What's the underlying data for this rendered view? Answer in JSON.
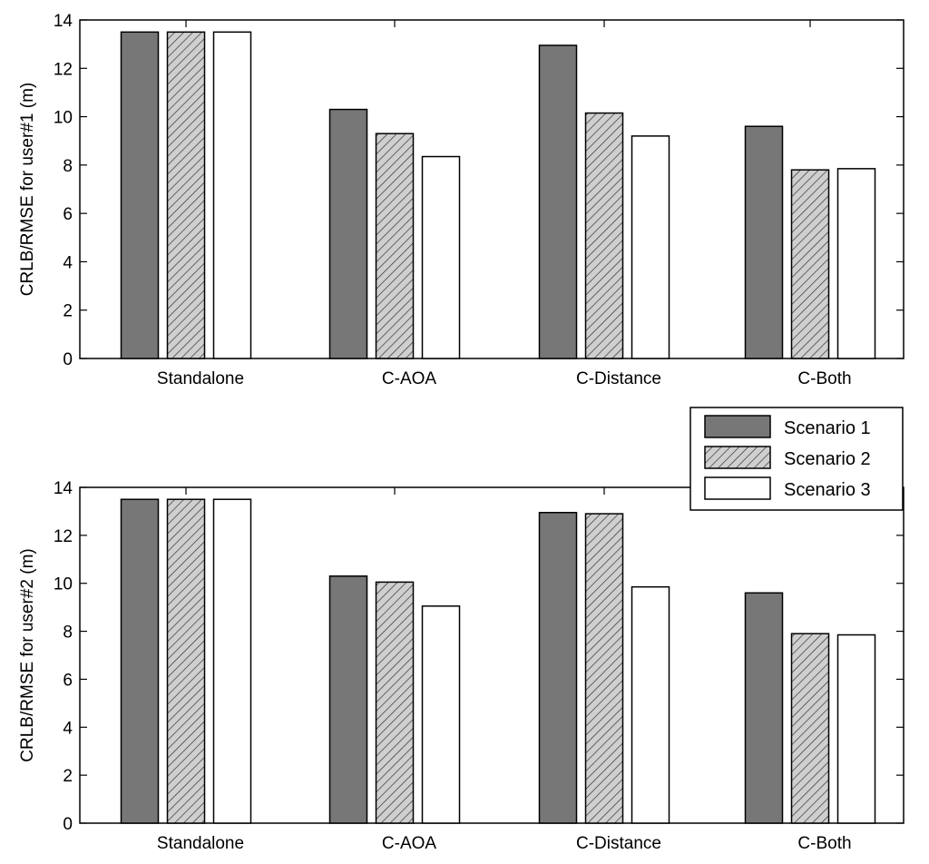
{
  "colors": {
    "scenario1": "#777777",
    "scenario2": "#cfcfcf",
    "scenario3": "#ffffff",
    "stroke": "#000000"
  },
  "legend": {
    "entries": [
      "Scenario 1",
      "Scenario 2",
      "Scenario 3"
    ],
    "placement": "right, between the two panels"
  },
  "chart_data": [
    {
      "type": "bar",
      "title": "",
      "xlabel": "",
      "ylabel": "CRLB/RMSE for user#1 (m)",
      "ylim": [
        0,
        14
      ],
      "yticks": [
        0,
        2,
        4,
        6,
        8,
        10,
        12,
        14
      ],
      "categories": [
        "Standalone",
        "C-AOA",
        "C-Distance",
        "C-Both"
      ],
      "series": [
        {
          "name": "Scenario 1",
          "values": [
            13.5,
            10.3,
            12.95,
            9.6
          ]
        },
        {
          "name": "Scenario 2",
          "values": [
            13.5,
            9.3,
            10.15,
            7.8
          ]
        },
        {
          "name": "Scenario 3",
          "values": [
            13.5,
            8.35,
            9.2,
            7.85
          ]
        }
      ]
    },
    {
      "type": "bar",
      "title": "",
      "xlabel": "",
      "ylabel": "CRLB/RMSE for user#2 (m)",
      "ylim": [
        0,
        14
      ],
      "yticks": [
        0,
        2,
        4,
        6,
        8,
        10,
        12,
        14
      ],
      "categories": [
        "Standalone",
        "C-AOA",
        "C-Distance",
        "C-Both"
      ],
      "series": [
        {
          "name": "Scenario 1",
          "values": [
            13.5,
            10.3,
            12.95,
            9.6
          ]
        },
        {
          "name": "Scenario 2",
          "values": [
            13.5,
            10.05,
            12.9,
            7.9
          ]
        },
        {
          "name": "Scenario 3",
          "values": [
            13.5,
            9.05,
            9.85,
            7.85
          ]
        }
      ]
    }
  ]
}
